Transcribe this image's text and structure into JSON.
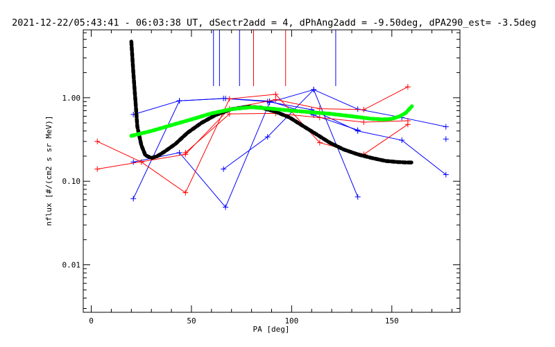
{
  "chart_data": {
    "type": "scatter",
    "title": "2021-12-22/05:43:41 - 06:03:38 UT, dSectr2add = 4, dPhAng2add = -9.50deg, dPA290_est=  -3.5deg",
    "xlabel": "PA [deg]",
    "ylabel": "nflux [#/(cm2 s sr MeV)]",
    "xlim": [
      -4,
      184
    ],
    "ylim": [
      0.0027,
      6.5
    ],
    "yscale": "log",
    "xticks": [
      {
        "value": 0,
        "label": "0"
      },
      {
        "value": 50,
        "label": "50"
      },
      {
        "value": 100,
        "label": "100"
      },
      {
        "value": 150,
        "label": "150"
      }
    ],
    "yticks": [
      {
        "value": 1.0,
        "label": "1.00"
      },
      {
        "value": 0.1,
        "label": "0.10"
      },
      {
        "value": 0.01,
        "label": "0.01"
      }
    ],
    "grid": false,
    "colors": {
      "blue": "#0000ff",
      "red": "#ff0000",
      "black": "#000000",
      "green": "#00ff00"
    },
    "vlines": [
      {
        "x": 61,
        "color": "blue"
      },
      {
        "x": 64,
        "color": "blue"
      },
      {
        "x": 74,
        "color": "blue"
      },
      {
        "x": 81,
        "color": "red"
      },
      {
        "x": 97,
        "color": "red"
      },
      {
        "x": 122,
        "color": "blue"
      }
    ],
    "series": [
      {
        "color": "blue",
        "style": "line+plus",
        "x": [
          21,
          44,
          67,
          89,
          111,
          133
        ],
        "y": [
          0.17,
          0.22,
          0.049,
          0.88,
          1.25,
          0.065
        ]
      },
      {
        "color": "blue",
        "style": "line+plus",
        "x": [
          21,
          44,
          67,
          89,
          111,
          133
        ],
        "y": [
          0.062,
          0.92,
          0.98,
          0.91,
          0.62,
          0.41
        ]
      },
      {
        "color": "blue",
        "style": "line+plus",
        "x": [
          21,
          44,
          66,
          88,
          110,
          133,
          155,
          177
        ],
        "y": [
          0.63,
          0.92,
          0.98,
          0.9,
          0.72,
          0.4,
          0.31,
          0.12
        ]
      },
      {
        "color": "blue",
        "style": "line+plus",
        "x": [
          66,
          88,
          111,
          133,
          155,
          177
        ],
        "y": [
          0.14,
          0.34,
          1.25,
          0.73,
          0.58,
          0.45
        ]
      },
      {
        "color": "blue",
        "style": "plus",
        "x": [
          177
        ],
        "y": [
          0.32
        ]
      },
      {
        "color": "red",
        "style": "line+plus",
        "x": [
          3,
          25,
          47,
          69,
          92,
          114,
          136,
          158
        ],
        "y": [
          0.3,
          0.17,
          0.073,
          0.97,
          1.1,
          0.29,
          0.21,
          0.48
        ]
      },
      {
        "color": "red",
        "style": "line+plus",
        "x": [
          3,
          47,
          69,
          92,
          114,
          136,
          158
        ],
        "y": [
          0.14,
          0.21,
          0.74,
          0.95,
          0.74,
          0.72,
          1.35
        ]
      },
      {
        "color": "red",
        "style": "line+plus",
        "x": [
          47,
          69,
          92,
          114,
          136,
          158
        ],
        "y": [
          0.22,
          0.64,
          0.65,
          0.58,
          0.51,
          0.53
        ]
      },
      {
        "color": "black",
        "style": "dashed-thick",
        "x": [
          20,
          21,
          22,
          23,
          25,
          27,
          30,
          33,
          37,
          42,
          48,
          55,
          62,
          70,
          78,
          85,
          92,
          99,
          105,
          112,
          119,
          126,
          133,
          140,
          147,
          153,
          157,
          160
        ],
        "y": [
          4.7,
          2.0,
          0.95,
          0.45,
          0.27,
          0.205,
          0.19,
          0.2,
          0.23,
          0.28,
          0.38,
          0.5,
          0.62,
          0.73,
          0.78,
          0.76,
          0.68,
          0.58,
          0.47,
          0.37,
          0.29,
          0.24,
          0.21,
          0.19,
          0.175,
          0.17,
          0.168,
          0.168
        ]
      },
      {
        "color": "green",
        "style": "dashed-thick",
        "x": [
          20,
          30,
          40,
          50,
          60,
          70,
          80,
          90,
          100,
          110,
          120,
          130,
          140,
          146,
          150,
          154,
          157,
          160
        ],
        "y": [
          0.35,
          0.4,
          0.47,
          0.55,
          0.65,
          0.73,
          0.77,
          0.74,
          0.7,
          0.67,
          0.64,
          0.6,
          0.56,
          0.55,
          0.56,
          0.6,
          0.66,
          0.79
        ]
      }
    ]
  }
}
